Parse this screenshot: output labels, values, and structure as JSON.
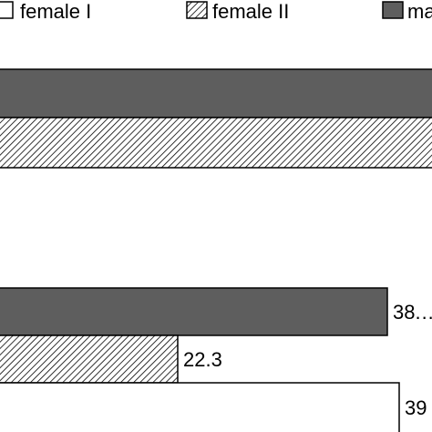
{
  "chart_data": {
    "type": "bar",
    "orientation": "horizontal",
    "legend": {
      "placement": "top",
      "entries": [
        {
          "label": "female I",
          "pattern": "solid",
          "color": "#ffffff"
        },
        {
          "label": "female II",
          "pattern": "hatch",
          "color": "#ffffff"
        },
        {
          "label": "ma",
          "pattern": "solid",
          "color": "#5e5e5e"
        }
      ]
    },
    "groups": [
      {
        "bars": [
          {
            "series": "ma",
            "value": null,
            "label": ""
          },
          {
            "series": "female II",
            "value": null,
            "label": ""
          }
        ]
      },
      {
        "bars": [
          {
            "series": "ma",
            "value": 38.5,
            "label": "38.…"
          },
          {
            "series": "female II",
            "value": 22.3,
            "label": "22.3"
          },
          {
            "series": "female I",
            "value": 39,
            "label": "39"
          }
        ]
      }
    ],
    "grid": false
  }
}
